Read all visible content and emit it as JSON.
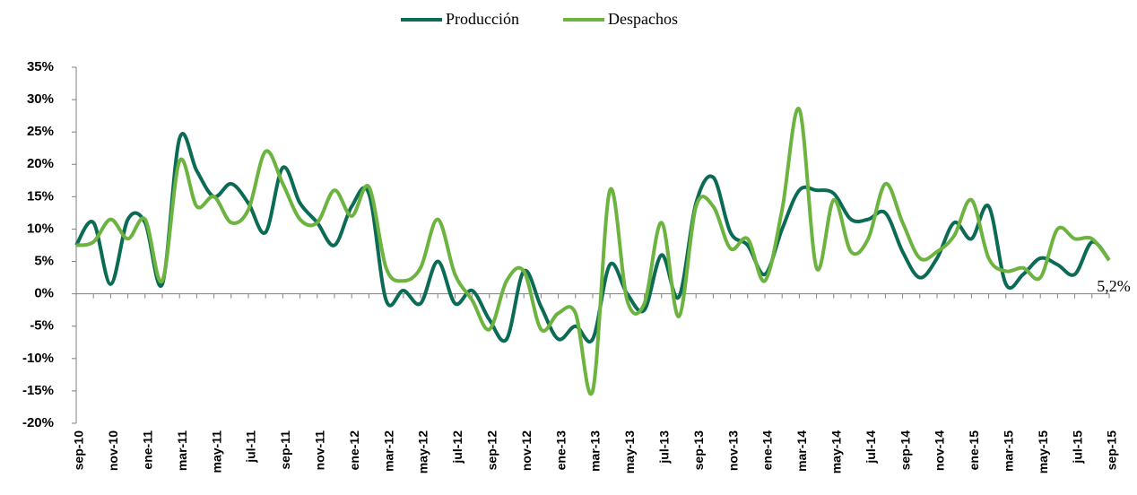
{
  "chart_data": {
    "type": "line",
    "categories": [
      "sep-10",
      null,
      "nov-10",
      null,
      "ene-11",
      null,
      "mar-11",
      null,
      "may-11",
      null,
      "jul-11",
      null,
      "sep-11",
      null,
      "nov-11",
      null,
      "ene-12",
      null,
      "mar-12",
      null,
      "may-12",
      null,
      "jul-12",
      null,
      "sep-12",
      null,
      "nov-12",
      null,
      "ene-13",
      null,
      "mar-13",
      null,
      "may-13",
      null,
      "jul-13",
      null,
      "sep-13",
      null,
      "nov-13",
      null,
      "ene-14",
      null,
      "mar-14",
      null,
      "may-14",
      null,
      "jul-14",
      null,
      "sep-14",
      null,
      "nov-14",
      null,
      "ene-15",
      null,
      "mar-15",
      null,
      "may-15",
      null,
      "jul-15",
      null,
      "sep-15"
    ],
    "series": [
      {
        "name": "Producción",
        "color": "#0b6b55",
        "values": [
          7.5,
          11,
          1.5,
          11.5,
          11,
          1.5,
          24,
          19,
          15,
          17,
          14,
          9.5,
          19.5,
          14,
          11,
          7.5,
          13.5,
          15.5,
          -1,
          0.5,
          -1.5,
          5,
          -1.5,
          0.5,
          -4,
          -7,
          3.5,
          -2,
          -7,
          -5,
          -7,
          4.5,
          0,
          -2.5,
          6,
          -0.5,
          14,
          18,
          9.5,
          7.5,
          3,
          10,
          16,
          16,
          15.5,
          11.5,
          11.5,
          12.5,
          6.5,
          2.5,
          5.5,
          11,
          8.5,
          13.5,
          1.5,
          3,
          5.5,
          4.5,
          3,
          8,
          5.2
        ]
      },
      {
        "name": "Despachos",
        "color": "#6db33f",
        "values": [
          7.5,
          8,
          11.5,
          8.5,
          11.5,
          2,
          20.5,
          13.5,
          15,
          11,
          13,
          22,
          17,
          11.5,
          11,
          16,
          12,
          16.5,
          4,
          2,
          4,
          11.5,
          3,
          -1,
          -5.5,
          2,
          3.5,
          -5.5,
          -3,
          -3,
          -15,
          16,
          -1,
          -1.5,
          11,
          -3.5,
          13.5,
          13.5,
          7,
          8.5,
          2,
          13,
          28.5,
          4,
          14.5,
          6.5,
          8.5,
          17,
          11,
          5.5,
          6.5,
          9,
          14.5,
          5.5,
          3.5,
          4,
          2.5,
          10,
          8.5,
          8.5,
          5.2
        ]
      }
    ],
    "ylim": [
      -20,
      35
    ],
    "yticks": [
      {
        "value": -20,
        "label": "-20%"
      },
      {
        "value": -15,
        "label": "-15%"
      },
      {
        "value": -10,
        "label": "-10%"
      },
      {
        "value": -5,
        "label": "-5%"
      },
      {
        "value": 0,
        "label": "0%"
      },
      {
        "value": 5,
        "label": "5%"
      },
      {
        "value": 10,
        "label": "10%"
      },
      {
        "value": 15,
        "label": "15%"
      },
      {
        "value": 20,
        "label": "20%"
      },
      {
        "value": 25,
        "label": "25%"
      },
      {
        "value": 30,
        "label": "30%"
      },
      {
        "value": 35,
        "label": "35%"
      }
    ],
    "grid": false,
    "legend": "top",
    "annotations": [
      {
        "text": "5,2%"
      }
    ]
  }
}
